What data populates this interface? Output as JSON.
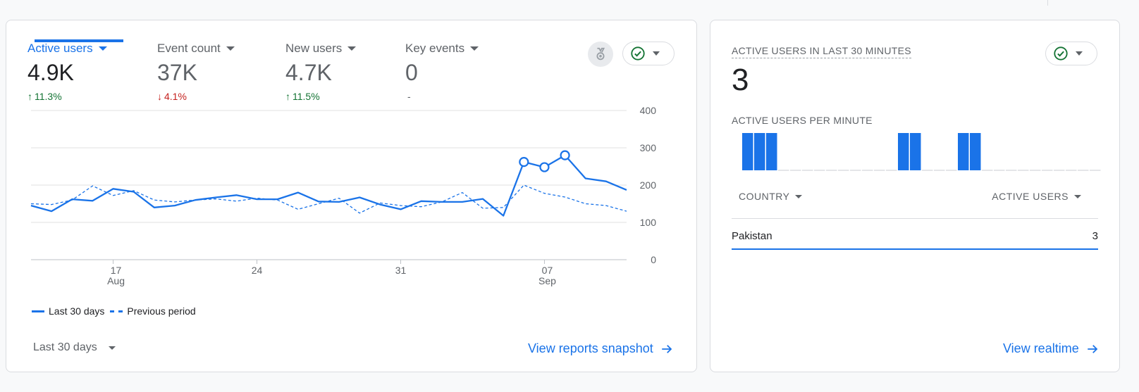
{
  "colors": {
    "accent": "#1a73e8",
    "positive": "#137333",
    "negative": "#c5221f",
    "muted": "#5f6368"
  },
  "metrics": [
    {
      "label": "Active users",
      "value": "4.9K",
      "delta": "11.3%",
      "trend": "up",
      "active": true
    },
    {
      "label": "Event count",
      "value": "37K",
      "delta": "4.1%",
      "trend": "down",
      "active": false
    },
    {
      "label": "New users",
      "value": "4.7K",
      "delta": "11.5%",
      "trend": "up",
      "active": false
    },
    {
      "label": "Key events",
      "value": "0",
      "delta": "-",
      "trend": "flat",
      "active": false
    }
  ],
  "icons": {
    "medal": "medal-icon",
    "status": "check-circle-icon",
    "arrow": "arrow-right-icon"
  },
  "chart_data": {
    "type": "line",
    "x_ticks": [
      {
        "day": 17,
        "label": "17",
        "sublabel": "Aug"
      },
      {
        "day": 24,
        "label": "24",
        "sublabel": ""
      },
      {
        "day": 31,
        "label": "31",
        "sublabel": ""
      },
      {
        "day": 38,
        "label": "07",
        "sublabel": "Sep"
      }
    ],
    "x_start_day": 13,
    "x_end_day": 42,
    "y_ticks": [
      "0",
      "100",
      "200",
      "300",
      "400"
    ],
    "ylim": [
      0,
      400
    ],
    "series": [
      {
        "name": "Last 30 days",
        "style": "solid",
        "values": [
          145,
          130,
          162,
          158,
          190,
          182,
          140,
          145,
          160,
          167,
          173,
          162,
          162,
          180,
          156,
          155,
          167,
          148,
          135,
          157,
          155,
          155,
          163,
          118,
          262,
          248,
          280,
          218,
          210,
          187
        ],
        "markers": [
          24,
          25,
          26
        ]
      },
      {
        "name": "Previous period",
        "style": "dashed",
        "values": [
          150,
          148,
          160,
          198,
          172,
          185,
          160,
          155,
          160,
          163,
          157,
          165,
          160,
          135,
          150,
          165,
          125,
          152,
          145,
          142,
          155,
          180,
          138,
          140,
          200,
          178,
          168,
          150,
          145,
          130
        ]
      }
    ]
  },
  "legend": {
    "current": "Last 30 days",
    "previous": "Previous period"
  },
  "date_range": "Last 30 days",
  "snapshot_link": "View reports snapshot",
  "realtime": {
    "title": "ACTIVE USERS IN LAST 30 MINUTES",
    "count": "3",
    "per_minute_label": "ACTIVE USERS PER MINUTE",
    "per_minute": [
      1,
      1,
      1,
      0,
      0,
      0,
      0,
      0,
      0,
      0,
      0,
      0,
      0,
      1,
      1,
      0,
      0,
      0,
      1,
      1,
      0,
      0,
      0,
      0,
      0,
      0,
      0,
      0,
      0,
      0
    ],
    "col_country": "COUNTRY",
    "col_active": "ACTIVE USERS",
    "rows": [
      {
        "country": "Pakistan",
        "users": "3"
      }
    ],
    "link": "View realtime"
  }
}
